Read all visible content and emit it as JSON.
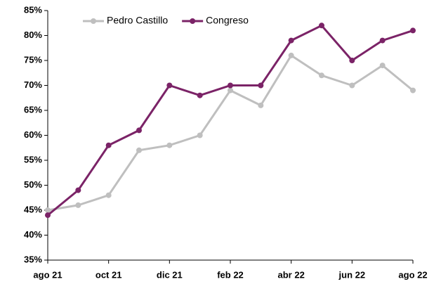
{
  "chart_data": {
    "type": "line",
    "categories": [
      "ago 21",
      null,
      "oct 21",
      null,
      "dic 21",
      null,
      "feb 22",
      null,
      "abr 22",
      null,
      "jun 22",
      null,
      "ago 22"
    ],
    "series": [
      {
        "name": "Pedro Castillo",
        "color": "#bfbfbf",
        "values": [
          45,
          46,
          48,
          57,
          58,
          60,
          69,
          66,
          76,
          72,
          70,
          74,
          69
        ]
      },
      {
        "name": "Congreso",
        "color": "#7b2367",
        "values": [
          44,
          49,
          58,
          61,
          70,
          68,
          70,
          70,
          79,
          82,
          75,
          79,
          81
        ]
      }
    ],
    "ylim": [
      35,
      85
    ],
    "yticks": [
      {
        "value": 35,
        "label": "35%"
      },
      {
        "value": 40,
        "label": "40%"
      },
      {
        "value": 45,
        "label": "45%"
      },
      {
        "value": 50,
        "label": "50%"
      },
      {
        "value": 55,
        "label": "55%"
      },
      {
        "value": 60,
        "label": "60%"
      },
      {
        "value": 65,
        "label": "65%"
      },
      {
        "value": 70,
        "label": "70%"
      },
      {
        "value": 75,
        "label": "75%"
      },
      {
        "value": 80,
        "label": "80%"
      },
      {
        "value": 85,
        "label": "85%"
      }
    ],
    "grid": false,
    "legend": "top"
  }
}
